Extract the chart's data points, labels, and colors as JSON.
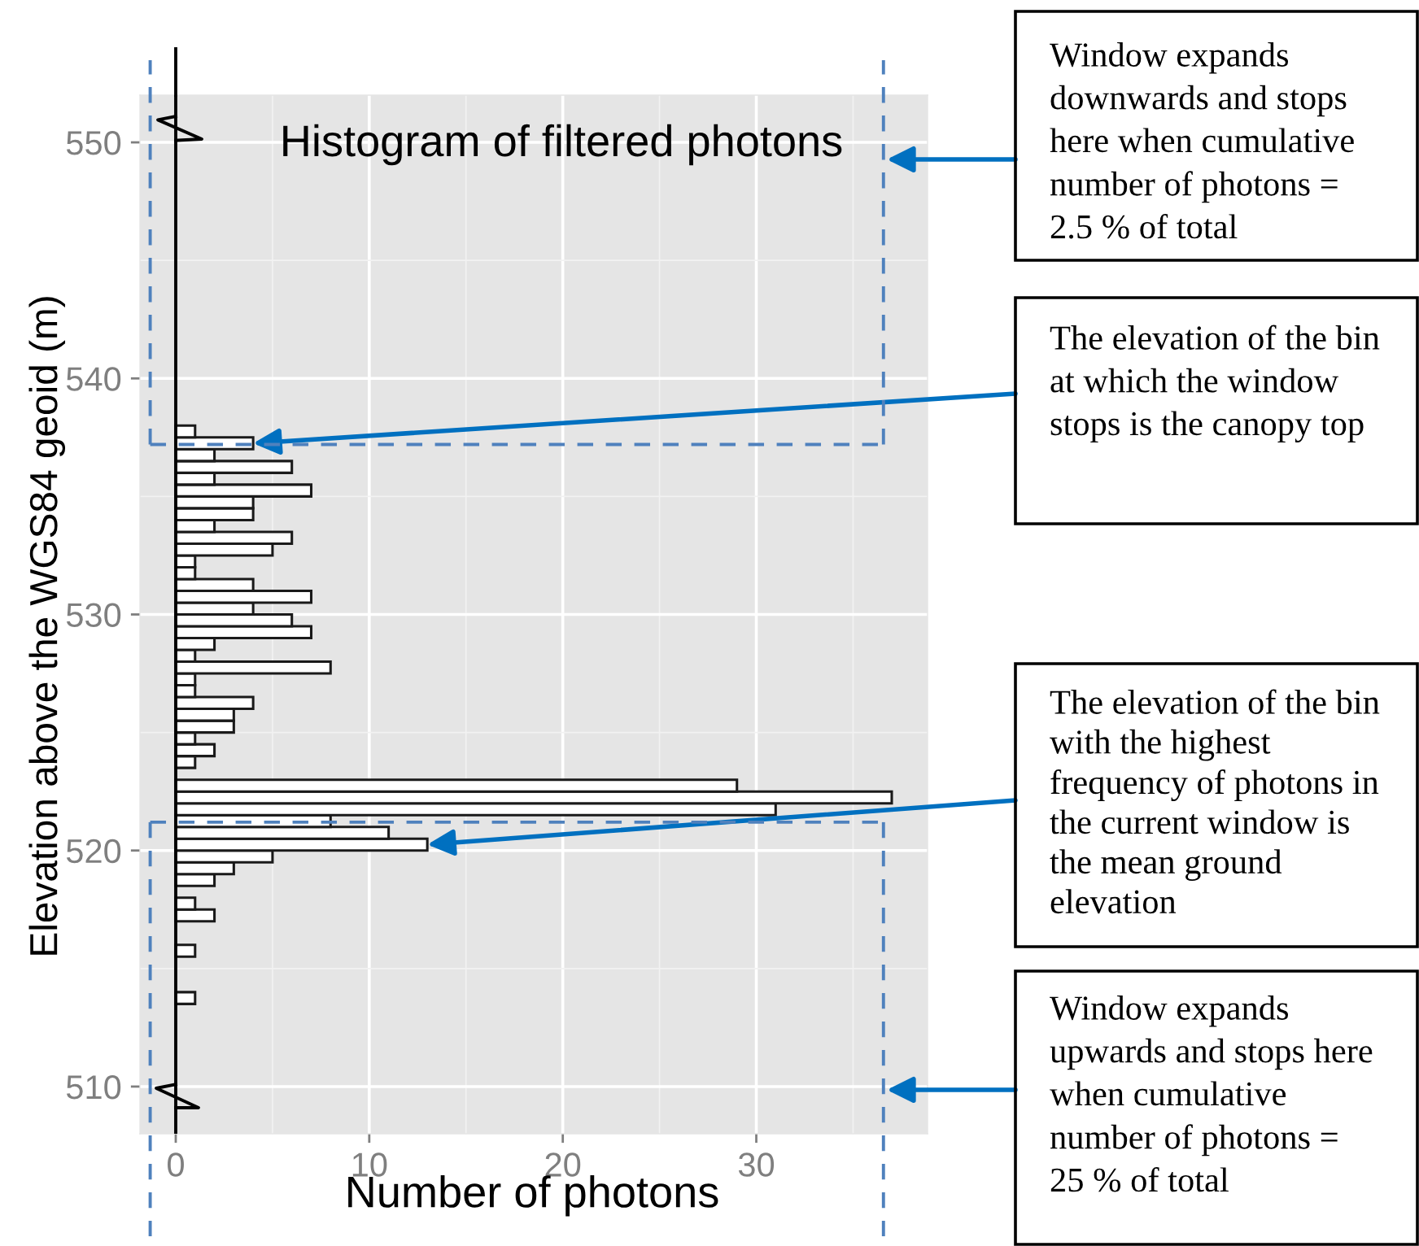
{
  "chart_data": {
    "type": "histogram",
    "orientation": "horizontal",
    "title": "Histogram of filtered photons",
    "xlabel": "Number of photons",
    "ylabel": "Elevation above the WGS84 geoid (m)",
    "bins": [
      513.5,
      514,
      514.5,
      515,
      515.5,
      516,
      516.5,
      517,
      517.5,
      518,
      518.5,
      519,
      519.5,
      520,
      520.5,
      521,
      521.5,
      522,
      522.5,
      523,
      523.5,
      524,
      524.5,
      525,
      525.5,
      526,
      526.5,
      527,
      527.5,
      528,
      528.5,
      529,
      529.5,
      530,
      530.5,
      531,
      531.5,
      532,
      532.5,
      533,
      533.5,
      534,
      534.5,
      535,
      535.5,
      536,
      536.5,
      537,
      537.5,
      538
    ],
    "values": [
      1,
      0,
      0,
      0,
      1,
      0,
      0,
      2,
      1,
      0,
      2,
      3,
      5,
      13,
      11,
      8,
      31,
      37,
      29,
      0,
      1,
      2,
      1,
      3,
      3,
      4,
      1,
      1,
      8,
      1,
      2,
      7,
      6,
      4,
      7,
      4,
      1,
      1,
      5,
      6,
      2,
      4,
      4,
      7,
      2,
      6,
      2,
      4,
      1
    ],
    "color": "#ffffff",
    "xlim": [
      -1.85,
      38.85
    ],
    "ylim": [
      508,
      552
    ],
    "xticks": [
      0,
      10,
      20,
      30
    ],
    "yticks": [
      510,
      520,
      530,
      540,
      550
    ],
    "grid": true,
    "ref_lines": [
      {
        "axis": "x",
        "value": 0,
        "color": "#000000"
      },
      {
        "axis": "y",
        "value": 537.2,
        "color": "#4f81bd",
        "line_style": "dashed"
      },
      {
        "axis": "y",
        "value": 521.2,
        "color": "#4f81bd",
        "line_style": "dashed"
      }
    ],
    "annotations": [
      "Window expands\ndownwards and stops\nhere when cumulative\nnumber of photons =\n2.5 % of total",
      {
        "text": "The elevation of the bin\nat which the window\nstops is the canopy top",
        "x": 4,
        "y": 537.25
      },
      {
        "text": "The elevation of the bin\nwith the highest\nfrequency of photons in\nthe current window is\nthe mean ground\nelevation",
        "x": 13,
        "y": 520.25
      },
      "Window expands\nupwards and stops here\nwhen cumulative\nnumber of photons =\n25 % of total"
    ]
  }
}
